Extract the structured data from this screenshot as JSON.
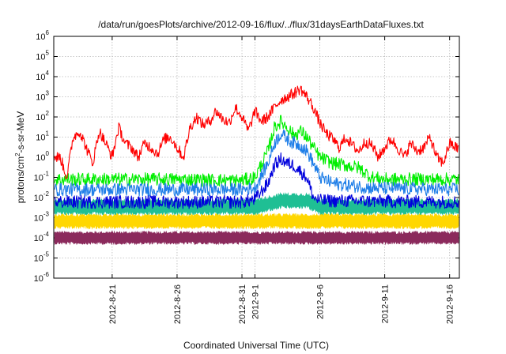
{
  "chart_data": {
    "type": "line",
    "title": "/data/run/goesPlots/archive/2012-09-16/flux/../flux/31daysEarthDataFluxes.txt",
    "xlabel": "Coordinated Universal Time (UTC)",
    "ylabel_parts": [
      "protons/cm",
      "2",
      "-s-sr-MeV"
    ],
    "y_scale": "log",
    "ylim": [
      1e-06,
      1000000.0
    ],
    "xlim": [
      "2012-08-16 12:00",
      "2012-09-16 18:00"
    ],
    "grid": true,
    "legend": "none",
    "x_ticks": [
      "2012-8-21",
      "2012-8-26",
      "2012-8-31",
      "2012-9-1",
      "2012-9-6",
      "2012-9-11",
      "2012-9-16"
    ],
    "y_ticks": [
      {
        "base": "10",
        "exp": "-6"
      },
      {
        "base": "10",
        "exp": "-5"
      },
      {
        "base": "10",
        "exp": "-4"
      },
      {
        "base": "10",
        "exp": "-3"
      },
      {
        "base": "10",
        "exp": "-2"
      },
      {
        "base": "10",
        "exp": "-1"
      },
      {
        "base": "10",
        "exp": "0"
      },
      {
        "base": "10",
        "exp": "1"
      },
      {
        "base": "10",
        "exp": "2"
      },
      {
        "base": "10",
        "exp": "3"
      },
      {
        "base": "10",
        "exp": "4"
      },
      {
        "base": "10",
        "exp": "5"
      },
      {
        "base": "10",
        "exp": "6"
      }
    ],
    "series": [
      {
        "color": "#8b2a5c",
        "band": [
          5e-05,
          0.0002
        ],
        "values": [
          [
            "2012-08-17",
            0.0001
          ],
          [
            "2012-08-21",
            0.0001
          ],
          [
            "2012-08-26",
            0.0001
          ],
          [
            "2012-08-31",
            0.0001
          ],
          [
            "2012-09-03",
            0.0001
          ],
          [
            "2012-09-06",
            0.0001
          ],
          [
            "2012-09-11",
            0.0001
          ],
          [
            "2012-09-16",
            0.0001
          ]
        ]
      },
      {
        "color": "#ffd700",
        "band": [
          0.0003,
          0.0015
        ],
        "values": [
          [
            "2012-08-17",
            0.0006
          ],
          [
            "2012-08-21",
            0.0006
          ],
          [
            "2012-08-26",
            0.0006
          ],
          [
            "2012-08-31",
            0.0006
          ],
          [
            "2012-09-03",
            0.0006
          ],
          [
            "2012-09-06",
            0.0006
          ],
          [
            "2012-09-11",
            0.0006
          ],
          [
            "2012-09-16",
            0.0006
          ]
        ]
      },
      {
        "color": "#1fbf94",
        "band": [
          0.0015,
          0.008
        ],
        "values": [
          [
            "2012-08-17",
            0.004
          ],
          [
            "2012-08-21",
            0.004
          ],
          [
            "2012-08-26",
            0.004
          ],
          [
            "2012-08-31",
            0.004
          ],
          [
            "2012-09-01",
            0.004
          ],
          [
            "2012-09-03",
            0.008
          ],
          [
            "2012-09-05",
            0.008
          ],
          [
            "2012-09-06",
            0.004
          ],
          [
            "2012-09-11",
            0.004
          ],
          [
            "2012-09-16",
            0.004
          ]
        ]
      },
      {
        "color": "#00ee00",
        "values": [
          [
            "2012-08-17",
            0.08
          ],
          [
            "2012-08-21",
            0.08
          ],
          [
            "2012-08-26",
            0.08
          ],
          [
            "2012-08-31",
            0.07
          ],
          [
            "2012-09-01",
            0.1
          ],
          [
            "2012-09-02",
            2
          ],
          [
            "2012-09-02 12:00",
            30
          ],
          [
            "2012-09-03",
            60
          ],
          [
            "2012-09-03 12:00",
            30
          ],
          [
            "2012-09-04",
            12
          ],
          [
            "2012-09-04 12:00",
            20
          ],
          [
            "2012-09-05",
            10
          ],
          [
            "2012-09-05 12:00",
            3
          ],
          [
            "2012-09-06",
            1
          ],
          [
            "2012-09-07",
            0.5
          ],
          [
            "2012-09-08",
            0.4
          ],
          [
            "2012-09-09",
            0.3
          ],
          [
            "2012-09-10",
            0.1
          ],
          [
            "2012-09-11",
            0.08
          ],
          [
            "2012-09-16",
            0.08
          ]
        ]
      },
      {
        "color": "#1e7ee8",
        "values": [
          [
            "2012-08-17",
            0.025
          ],
          [
            "2012-08-21",
            0.025
          ],
          [
            "2012-08-26",
            0.025
          ],
          [
            "2012-08-31",
            0.025
          ],
          [
            "2012-09-01",
            0.03
          ],
          [
            "2012-09-02",
            0.5
          ],
          [
            "2012-09-02 12:00",
            5
          ],
          [
            "2012-09-03",
            15
          ],
          [
            "2012-09-03 12:00",
            8
          ],
          [
            "2012-09-04",
            5
          ],
          [
            "2012-09-04 12:00",
            4
          ],
          [
            "2012-09-05",
            2
          ],
          [
            "2012-09-05 12:00",
            0.5
          ],
          [
            "2012-09-06",
            0.1
          ],
          [
            "2012-09-07",
            0.05
          ],
          [
            "2012-09-10",
            0.03
          ],
          [
            "2012-09-16",
            0.025
          ]
        ]
      },
      {
        "color": "#0000dd",
        "values": [
          [
            "2012-08-17",
            0.006
          ],
          [
            "2012-08-21",
            0.006
          ],
          [
            "2012-08-26",
            0.006
          ],
          [
            "2012-08-31",
            0.006
          ],
          [
            "2012-09-01",
            0.008
          ],
          [
            "2012-09-02",
            0.05
          ],
          [
            "2012-09-02 12:00",
            0.4
          ],
          [
            "2012-09-03",
            0.8
          ],
          [
            "2012-09-03 12:00",
            0.5
          ],
          [
            "2012-09-04",
            0.4
          ],
          [
            "2012-09-04 12:00",
            0.2
          ],
          [
            "2012-09-05",
            0.1
          ],
          [
            "2012-09-05 12:00",
            0.01
          ],
          [
            "2012-09-06",
            0.007
          ],
          [
            "2012-09-16",
            0.006
          ]
        ]
      },
      {
        "color": "#ff0000",
        "values": [
          [
            "2012-08-17",
            1
          ],
          [
            "2012-08-17 12:00",
            0.1
          ],
          [
            "2012-08-18",
            10
          ],
          [
            "2012-08-18 12:00",
            20
          ],
          [
            "2012-08-19",
            3
          ],
          [
            "2012-08-19 12:00",
            0.5
          ],
          [
            "2012-08-20",
            20
          ],
          [
            "2012-08-20 12:00",
            5
          ],
          [
            "2012-08-21",
            1
          ],
          [
            "2012-08-21 12:00",
            30
          ],
          [
            "2012-08-22",
            5
          ],
          [
            "2012-08-22 12:00",
            3
          ],
          [
            "2012-08-23",
            1
          ],
          [
            "2012-08-23 12:00",
            5
          ],
          [
            "2012-08-24",
            3
          ],
          [
            "2012-08-24 12:00",
            1.5
          ],
          [
            "2012-08-25",
            8
          ],
          [
            "2012-08-25 12:00",
            10
          ],
          [
            "2012-08-26",
            3
          ],
          [
            "2012-08-26 12:00",
            1
          ],
          [
            "2012-08-27",
            30
          ],
          [
            "2012-08-27 12:00",
            100
          ],
          [
            "2012-08-28",
            40
          ],
          [
            "2012-08-28 12:00",
            60
          ],
          [
            "2012-08-29",
            200
          ],
          [
            "2012-08-29 12:00",
            80
          ],
          [
            "2012-08-30",
            50
          ],
          [
            "2012-08-30 12:00",
            300
          ],
          [
            "2012-08-31",
            100
          ],
          [
            "2012-08-31 12:00",
            20
          ],
          [
            "2012-09-01",
            200
          ],
          [
            "2012-09-01 12:00",
            60
          ],
          [
            "2012-09-02",
            100
          ],
          [
            "2012-09-02 12:00",
            300
          ],
          [
            "2012-09-03",
            700
          ],
          [
            "2012-09-03 12:00",
            1000
          ],
          [
            "2012-09-04",
            1500
          ],
          [
            "2012-09-04 12:00",
            2500
          ],
          [
            "2012-09-05",
            1000
          ],
          [
            "2012-09-05 12:00",
            300
          ],
          [
            "2012-09-06",
            50
          ],
          [
            "2012-09-06 12:00",
            15
          ],
          [
            "2012-09-07",
            8
          ],
          [
            "2012-09-07 12:00",
            3
          ],
          [
            "2012-09-08",
            10
          ],
          [
            "2012-09-08 12:00",
            4
          ],
          [
            "2012-09-09",
            2
          ],
          [
            "2012-09-09 12:00",
            6
          ],
          [
            "2012-09-10",
            4
          ],
          [
            "2012-09-10 12:00",
            1
          ],
          [
            "2012-09-11",
            3
          ],
          [
            "2012-09-11 12:00",
            8
          ],
          [
            "2012-09-12",
            3
          ],
          [
            "2012-09-12 12:00",
            1
          ],
          [
            "2012-09-13",
            5
          ],
          [
            "2012-09-13 12:00",
            2
          ],
          [
            "2012-09-14",
            3
          ],
          [
            "2012-09-14 12:00",
            10
          ],
          [
            "2012-09-15",
            1
          ],
          [
            "2012-09-15 12:00",
            0.5
          ],
          [
            "2012-09-16",
            5
          ],
          [
            "2012-09-16 12:00",
            3
          ]
        ]
      }
    ]
  }
}
